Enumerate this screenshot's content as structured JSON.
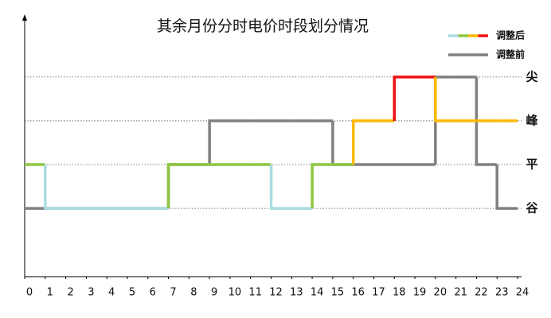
{
  "chart_data": {
    "type": "step",
    "title": "其余月份分时电价时段划分情况",
    "x": [
      0,
      1,
      2,
      3,
      4,
      5,
      6,
      7,
      8,
      9,
      10,
      11,
      12,
      13,
      14,
      15,
      16,
      17,
      18,
      19,
      20,
      21,
      22,
      23,
      24
    ],
    "xlim": [
      0,
      24
    ],
    "xticks": [
      0,
      1,
      2,
      3,
      4,
      5,
      6,
      7,
      8,
      9,
      10,
      11,
      12,
      13,
      14,
      15,
      16,
      17,
      18,
      19,
      20,
      21,
      22,
      23,
      24
    ],
    "ylim": [
      -0.56,
      5.36
    ],
    "yticks": [
      {
        "value": 1,
        "label": "谷"
      },
      {
        "value": 2,
        "label": "平"
      },
      {
        "value": 3,
        "label": "峰"
      },
      {
        "value": 4,
        "label": "尖"
      }
    ],
    "level_colors": [
      "#a8dde0",
      "#8cc63f",
      "#ffb800",
      "#ee1111"
    ],
    "grid": true,
    "series": [
      {
        "name": "调整前",
        "color": "#808080",
        "values": [
          1,
          1,
          1,
          1,
          1,
          1,
          1,
          2,
          2,
          3,
          3,
          3,
          3,
          3,
          3,
          2,
          2,
          2,
          2,
          2,
          4,
          4,
          2,
          1,
          1
        ]
      },
      {
        "name": "调整后",
        "color_by_level": true,
        "values": [
          2,
          1,
          1,
          1,
          1,
          1,
          1,
          2,
          2,
          2,
          2,
          2,
          1,
          1,
          2,
          2,
          3,
          3,
          4,
          4,
          3,
          3,
          3,
          3,
          3
        ]
      }
    ]
  }
}
